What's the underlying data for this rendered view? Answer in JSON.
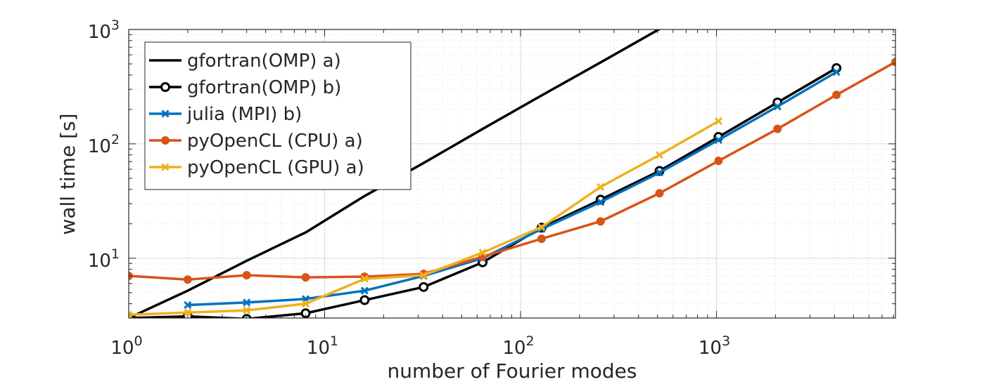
{
  "chart_data": {
    "type": "line",
    "title": "",
    "xlabel": "number of Fourier modes",
    "ylabel": "wall time [s]",
    "xscale": "log",
    "yscale": "log",
    "xlim": [
      1,
      8192
    ],
    "ylim": [
      3,
      1000
    ],
    "grid": true,
    "minor_grid": true,
    "legend_position": "top-left",
    "xticks": [
      {
        "value": 1,
        "base": "10",
        "exp": "0"
      },
      {
        "value": 10,
        "base": "10",
        "exp": "1"
      },
      {
        "value": 100,
        "base": "10",
        "exp": "2"
      },
      {
        "value": 1000,
        "base": "10",
        "exp": "3"
      }
    ],
    "yticks": [
      {
        "value": 10,
        "base": "10",
        "exp": "1"
      },
      {
        "value": 100,
        "base": "10",
        "exp": "2"
      },
      {
        "value": 1000,
        "base": "10",
        "exp": "3"
      }
    ],
    "series": [
      {
        "name": "gfortran(OMP) a)",
        "color": "#000000",
        "marker": "none",
        "x": [
          1,
          2,
          4,
          8,
          16,
          32,
          64,
          128,
          256,
          512
        ],
        "y": [
          3.0,
          5.2,
          9.5,
          16.8,
          35,
          68,
          135,
          265,
          515,
          1010
        ]
      },
      {
        "name": "gfortran(OMP) b)",
        "color": "#000000",
        "marker": "circle",
        "x": [
          1,
          2,
          4,
          8,
          16,
          32,
          64,
          128,
          256,
          512,
          1024,
          2048,
          4096
        ],
        "y": [
          3.0,
          3.1,
          2.95,
          3.3,
          4.3,
          5.6,
          9.2,
          18.5,
          32.5,
          58,
          115,
          230,
          460
        ]
      },
      {
        "name": "julia (MPI) b)",
        "color": "#0072BD",
        "marker": "x",
        "x": [
          2,
          4,
          8,
          16,
          32,
          64,
          128,
          256,
          512,
          1024,
          2048,
          4096
        ],
        "y": [
          3.9,
          4.1,
          4.4,
          5.2,
          7.0,
          10.0,
          18.0,
          31,
          56,
          108,
          212,
          425
        ]
      },
      {
        "name": "pyOpenCL (CPU) a)",
        "color": "#D95319",
        "marker": "dot",
        "x": [
          1,
          2,
          4,
          8,
          16,
          32,
          64,
          128,
          256,
          512,
          1024,
          2048,
          4096,
          8192
        ],
        "y": [
          7.0,
          6.5,
          7.1,
          6.8,
          6.9,
          7.3,
          10.3,
          14.8,
          21,
          37,
          71,
          135,
          268,
          520
        ]
      },
      {
        "name": "pyOpenCL (GPU) a)",
        "color": "#EDB120",
        "marker": "x",
        "x": [
          1,
          2,
          4,
          8,
          16,
          32,
          64,
          128,
          256,
          512,
          1024
        ],
        "y": [
          3.2,
          3.35,
          3.5,
          4.0,
          6.6,
          7.1,
          11.2,
          18.7,
          42,
          80,
          158
        ]
      }
    ]
  }
}
